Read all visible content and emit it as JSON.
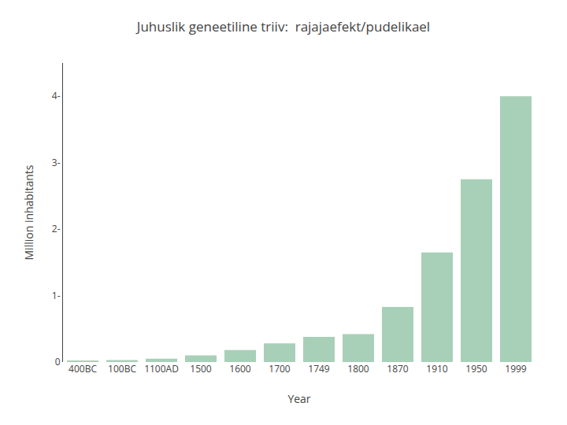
{
  "chart_data": {
    "type": "bar",
    "title": "Juhuslik geneetiline triiv:  rajajaefekt/pudelikael",
    "x_label": "Year",
    "y_label": "Million inhabitants",
    "categories": [
      "400BC",
      "100BC",
      "1100AD",
      "1500",
      "1600",
      "1700",
      "1749",
      "1800",
      "1870",
      "1910",
      "1950",
      "1999"
    ],
    "values": [
      0.02,
      0.03,
      0.05,
      0.1,
      0.18,
      0.28,
      0.38,
      0.42,
      0.83,
      1.65,
      2.75,
      4.0
    ],
    "color": "#a8d0b8",
    "ylim": [
      0,
      4.5
    ],
    "yticks": [
      0,
      {
        "value": 1,
        "label": "1-"
      },
      {
        "value": 2,
        "label": "2-"
      },
      {
        "value": 3,
        "label": "3-"
      },
      {
        "value": 4,
        "label": "4-"
      }
    ],
    "grid": false
  }
}
